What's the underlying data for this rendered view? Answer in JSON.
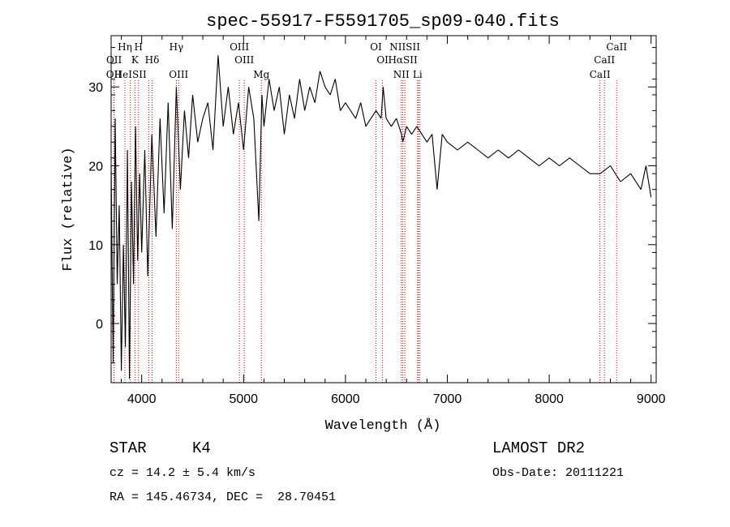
{
  "chart_data": {
    "type": "line",
    "title": "spec-55917-F5591705_sp09-040.fits",
    "xlabel": "Wavelength (Å)",
    "ylabel": "Flux (relative)",
    "xlim": [
      3700,
      9050
    ],
    "ylim": [
      -7.5,
      36.5
    ],
    "xticks": [
      4000,
      5000,
      6000,
      7000,
      8000,
      9000
    ],
    "yticks": [
      0,
      10,
      20,
      30
    ],
    "grid": false,
    "series": [
      {
        "x": [
          3700,
          3720,
          3740,
          3760,
          3780,
          3800,
          3820,
          3840,
          3860,
          3880,
          3900,
          3920,
          3940,
          3960,
          3980,
          4000,
          4030,
          4060,
          4100,
          4140,
          4180,
          4220,
          4260,
          4300,
          4340,
          4380,
          4420,
          4460,
          4500,
          4550,
          4600,
          4650,
          4700,
          4750,
          4800,
          4850,
          4900,
          4950,
          5000,
          5050,
          5100,
          5150,
          5180,
          5200,
          5250,
          5300,
          5350,
          5400,
          5450,
          5500,
          5550,
          5600,
          5650,
          5700,
          5750,
          5800,
          5850,
          5900,
          5950,
          6000,
          6050,
          6100,
          6150,
          6200,
          6250,
          6300,
          6350,
          6370,
          6400,
          6450,
          6500,
          6550,
          6563,
          6600,
          6650,
          6700,
          6750,
          6800,
          6850,
          6900,
          6950,
          7000,
          7100,
          7200,
          7300,
          7400,
          7500,
          7600,
          7700,
          7800,
          7900,
          8000,
          8100,
          8200,
          8300,
          8400,
          8500,
          8600,
          8700,
          8800,
          8900,
          8950,
          9000
        ],
        "y": [
          20,
          -5,
          26,
          5,
          15,
          -6,
          10,
          -3,
          22,
          -7,
          18,
          5,
          25,
          8,
          19,
          9,
          22,
          6,
          24,
          11,
          26,
          14,
          28,
          12,
          30,
          17,
          27,
          21,
          29,
          23,
          26,
          28,
          22,
          34,
          25,
          30,
          24,
          28,
          22,
          30,
          26,
          13,
          29,
          25,
          31,
          27,
          30,
          24,
          29,
          26,
          31,
          27,
          30,
          28,
          32,
          30,
          29,
          31,
          27,
          28,
          27,
          26,
          28,
          25,
          26,
          27,
          26,
          30,
          26,
          25,
          26,
          24,
          23,
          25,
          24,
          25,
          24,
          23,
          24,
          17,
          24,
          23,
          22,
          23,
          22,
          21,
          22,
          21,
          22,
          21,
          20,
          21,
          20,
          21,
          20,
          19,
          19,
          20,
          18,
          19,
          17,
          20,
          16
        ]
      }
    ],
    "lines": [
      {
        "name": "OII",
        "wavelength": 3727
      },
      {
        "name": "OII",
        "wavelength": 3729
      },
      {
        "name": "Hη",
        "wavelength": 3835
      },
      {
        "name": "HeI",
        "wavelength": 3889
      },
      {
        "name": "K",
        "wavelength": 3934
      },
      {
        "name": "H",
        "wavelength": 3969
      },
      {
        "name": "SII",
        "wavelength": 4070
      },
      {
        "name": "Hδ",
        "wavelength": 4102
      },
      {
        "name": "Hγ",
        "wavelength": 4340
      },
      {
        "name": "OIII",
        "wavelength": 4363
      },
      {
        "name": "OIII",
        "wavelength": 4959
      },
      {
        "name": "OIII",
        "wavelength": 5007
      },
      {
        "name": "Mg",
        "wavelength": 5175
      },
      {
        "name": "OI",
        "wavelength": 6300
      },
      {
        "name": "OI",
        "wavelength": 6364
      },
      {
        "name": "NII",
        "wavelength": 6548
      },
      {
        "name": "Hα",
        "wavelength": 6563
      },
      {
        "name": "NII",
        "wavelength": 6583
      },
      {
        "name": "SII",
        "wavelength": 6716
      },
      {
        "name": "Li",
        "wavelength": 6708
      },
      {
        "name": "SII",
        "wavelength": 6731
      },
      {
        "name": "CaII",
        "wavelength": 8498
      },
      {
        "name": "CaII",
        "wavelength": 8542
      },
      {
        "name": "CaII",
        "wavelength": 8662
      }
    ],
    "line_labels": [
      {
        "text": "Hη",
        "row": 1,
        "wavelength": 3835
      },
      {
        "text": "H",
        "row": 1,
        "wavelength": 3969
      },
      {
        "text": "Hγ",
        "row": 1,
        "wavelength": 4340
      },
      {
        "text": "OIII",
        "row": 1,
        "wavelength": 4959
      },
      {
        "text": "OI",
        "row": 1,
        "wavelength": 6300
      },
      {
        "text": "NIISII",
        "row": 1,
        "wavelength": 6583
      },
      {
        "text": "CaII",
        "row": 1,
        "wavelength": 8662
      },
      {
        "text": "OII",
        "row": 2,
        "wavelength": 3729
      },
      {
        "text": "K",
        "row": 2,
        "wavelength": 3934
      },
      {
        "text": "Hδ",
        "row": 2,
        "wavelength": 4102
      },
      {
        "text": "OIII",
        "row": 2,
        "wavelength": 5007
      },
      {
        "text": "OI",
        "row": 2,
        "wavelength": 6364
      },
      {
        "text": "HαSII",
        "row": 2,
        "wavelength": 6563
      },
      {
        "text": "CaII",
        "row": 2,
        "wavelength": 8542
      },
      {
        "text": "OII",
        "row": 3,
        "wavelength": 3727
      },
      {
        "text": "HeISII",
        "row": 3,
        "wavelength": 3889
      },
      {
        "text": "OIII",
        "row": 3,
        "wavelength": 4363
      },
      {
        "text": "Mg",
        "row": 3,
        "wavelength": 5175
      },
      {
        "text": "NII",
        "row": 3,
        "wavelength": 6548
      },
      {
        "text": "Li",
        "row": 3,
        "wavelength": 6708
      },
      {
        "text": "CaII",
        "row": 3,
        "wavelength": 8498
      }
    ],
    "colors": {
      "spectrum": "#000000",
      "line_markers": "#cc0000",
      "axes": "#000000"
    }
  },
  "info": {
    "object_class": "STAR",
    "subclass": "K4",
    "survey": "LAMOST DR2",
    "redshift": "cz = 14.2 ± 5.4 km/s",
    "obs_date": "Obs-Date: 20111221",
    "coords": "RA = 145.46734, DEC =  28.70451"
  }
}
